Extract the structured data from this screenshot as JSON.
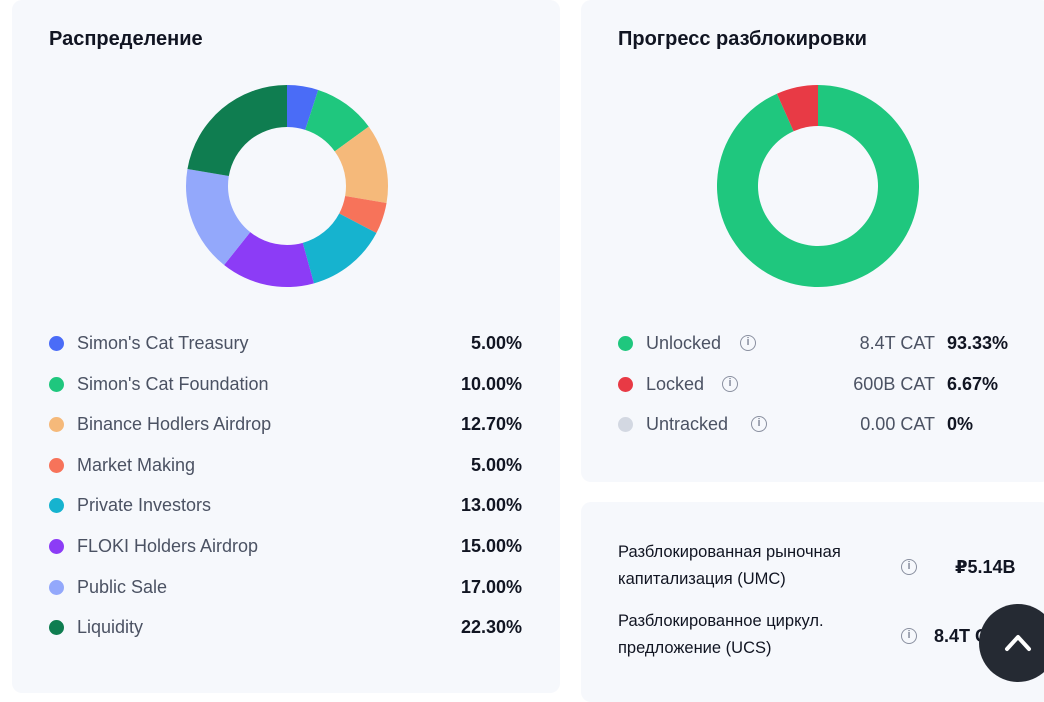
{
  "distribution": {
    "title": "Распределение",
    "chart_data": {
      "type": "pie",
      "categories": [
        "Simon's Cat Treasury",
        "Simon's Cat Foundation",
        "Binance Hodlers Airdrop",
        "Market Making",
        "Private Investors",
        "FLOKI Holders Airdrop",
        "Public Sale",
        "Liquidity"
      ],
      "values": [
        5.0,
        10.0,
        12.7,
        5.0,
        13.0,
        15.0,
        17.0,
        22.3
      ],
      "labels": [
        "5.00%",
        "10.00%",
        "12.70%",
        "5.00%",
        "13.00%",
        "15.00%",
        "17.00%",
        "22.30%"
      ],
      "colors": [
        "#4a6cf7",
        "#1fc77e",
        "#f5b97a",
        "#f7735a",
        "#16b3cf",
        "#8c3cf6",
        "#93a8fb",
        "#0f7d50"
      ],
      "donut": true,
      "legend": "bottom"
    }
  },
  "unlock": {
    "title": "Прогресс разблокировки",
    "chart_data": {
      "type": "pie",
      "categories": [
        "Unlocked",
        "Locked",
        "Untracked"
      ],
      "values": [
        93.33,
        6.67,
        0
      ],
      "amounts": [
        "8.4T CAT",
        "600B CAT",
        "0.00 CAT"
      ],
      "labels": [
        "93.33%",
        "6.67%",
        "0%"
      ],
      "colors": [
        "#1fc77e",
        "#e83a45",
        "#d3d8e2"
      ],
      "donut": true,
      "legend": "bottom"
    }
  },
  "metrics": [
    {
      "label_line1": "Разблокированная рыночная",
      "label_line2": "капитализация (UMC)",
      "value": "₽5.14B"
    },
    {
      "label_line1": "Разблокированное циркул.",
      "label_line2": "предложение (UCS)",
      "value": "8.4T CAT"
    }
  ],
  "icons": {
    "info": "info-icon",
    "scroll_top": "chevron-up-icon"
  }
}
